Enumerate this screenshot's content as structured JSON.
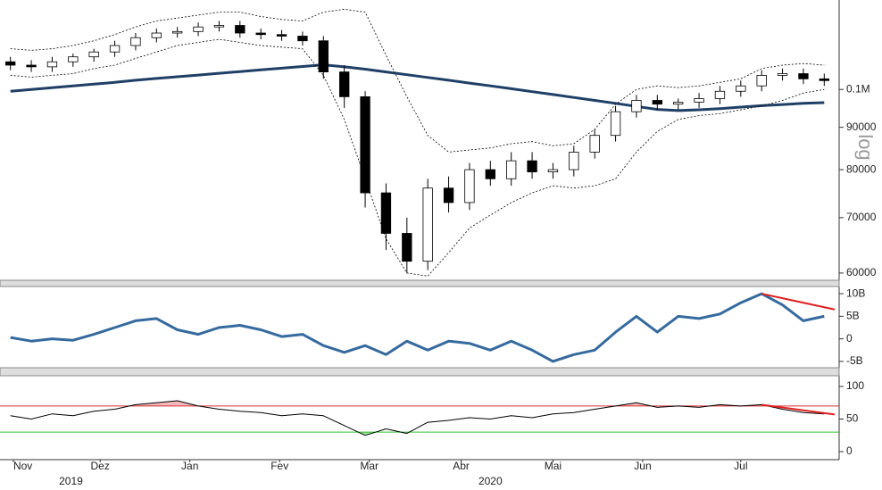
{
  "chart_data": [
    {
      "type": "candlestick",
      "log_scale": true,
      "scale_label": "log",
      "xlim": [
        -0.5,
        39.5
      ],
      "ylim": [
        59100,
        127000
      ],
      "yticks": [
        {
          "value": 100000,
          "label": "0.1M"
        },
        90000,
        80000,
        70000,
        60000
      ],
      "candle_colors": {
        "up": "#ffffff",
        "down": "#000000",
        "edge": "#000000"
      },
      "open": [
        108000,
        107000,
        106500,
        108000,
        109500,
        111000,
        113000,
        115500,
        117000,
        117500,
        119000,
        119500,
        117000,
        116500,
        116000,
        114500,
        105000,
        98000,
        75000,
        67000,
        62000,
        76000,
        73000,
        80000,
        78000,
        82000,
        79500,
        80000,
        84000,
        88000,
        94000,
        97000,
        96000,
        96500,
        97500,
        99500,
        101000,
        104000,
        104500,
        103000
      ],
      "high": [
        109500,
        108500,
        109500,
        110500,
        112000,
        114500,
        117000,
        118500,
        119000,
        120500,
        121000,
        121000,
        118500,
        118000,
        117500,
        116000,
        107000,
        99500,
        77000,
        70000,
        78000,
        78500,
        81500,
        82000,
        84000,
        84000,
        81500,
        85500,
        89500,
        95500,
        98500,
        98500,
        97500,
        99000,
        101000,
        102500,
        105500,
        106000,
        106000,
        104500
      ],
      "low": [
        105500,
        105000,
        105000,
        106500,
        108000,
        109500,
        111500,
        114000,
        115500,
        116000,
        117500,
        115500,
        115000,
        114500,
        113000,
        103000,
        95000,
        72000,
        64000,
        60000,
        60500,
        71000,
        71500,
        76500,
        76500,
        78000,
        78000,
        78500,
        82500,
        86500,
        92500,
        94500,
        94500,
        95000,
        96000,
        98000,
        99500,
        102500,
        101500,
        101000
      ],
      "close": [
        107000,
        106500,
        108000,
        109500,
        111000,
        113000,
        115500,
        117000,
        117500,
        119000,
        119500,
        117000,
        116500,
        116000,
        114500,
        105000,
        98000,
        75000,
        67000,
        62000,
        76000,
        73000,
        80000,
        78000,
        82000,
        79500,
        80000,
        84000,
        88000,
        94000,
        97000,
        96000,
        96500,
        97500,
        99500,
        101000,
        104000,
        104500,
        103000,
        102500
      ],
      "series": [
        {
          "color": "#1f3f66",
          "width": 3,
          "dash": false,
          "values": [
            99500,
            100000,
            100500,
            101000,
            101500,
            102000,
            102600,
            103100,
            103600,
            104100,
            104600,
            105100,
            105600,
            106100,
            106600,
            107100,
            106500,
            105800,
            105000,
            104200,
            103400,
            102600,
            101800,
            101000,
            100200,
            99400,
            98600,
            97800,
            97000,
            96200,
            95400,
            94600,
            94300,
            94500,
            94800,
            95200,
            95600,
            95900,
            96200,
            96400
          ]
        },
        {
          "color": "#000000",
          "width": 0.8,
          "dash": true,
          "values": [
            112000,
            111500,
            112000,
            113000,
            114500,
            116500,
            119000,
            121000,
            122000,
            123000,
            124000,
            124000,
            122500,
            121500,
            121000,
            124000,
            125000,
            124000,
            110000,
            98000,
            88000,
            84000,
            84500,
            85000,
            86000,
            86500,
            85500,
            86000,
            89500,
            96000,
            100000,
            101000,
            100500,
            101000,
            102000,
            103000,
            106000,
            107000,
            107500,
            107000
          ]
        },
        {
          "color": "#000000",
          "width": 0.8,
          "dash": true,
          "values": [
            104000,
            103500,
            104000,
            104500,
            106000,
            107000,
            109000,
            111000,
            113000,
            114000,
            115000,
            114000,
            113000,
            112500,
            112000,
            104000,
            92000,
            78000,
            66000,
            60000,
            59500,
            63500,
            68000,
            70500,
            73000,
            75000,
            76500,
            76000,
            76500,
            78000,
            84000,
            89000,
            92000,
            93000,
            93500,
            94500,
            95500,
            97000,
            99000,
            100000
          ]
        }
      ]
    },
    {
      "type": "line",
      "xlim": [
        -0.5,
        39.5
      ],
      "ylim": [
        -6400000000,
        11400000000
      ],
      "yticks": [
        {
          "value": 10000000000,
          "label": "10B"
        },
        {
          "value": 5000000000,
          "label": "5B"
        },
        0,
        {
          "value": -5000000000,
          "label": "-5B"
        }
      ],
      "series": [
        {
          "color": "#356a9e",
          "width": 3,
          "values": [
            300000000,
            -500000000,
            0,
            -300000000,
            1000000000,
            2500000000,
            4000000000,
            4500000000,
            2000000000,
            1000000000,
            2500000000,
            3000000000,
            2000000000,
            500000000,
            1000000000,
            -1500000000,
            -3000000000,
            -1500000000,
            -3500000000,
            -500000000,
            -2500000000,
            -500000000,
            -1000000000,
            -2500000000,
            -500000000,
            -2500000000,
            -5000000000,
            -3500000000,
            -2500000000,
            1500000000,
            5000000000,
            1500000000,
            5000000000,
            4500000000,
            5500000000,
            8000000000,
            10000000000,
            7500000000,
            4000000000,
            5000000000
          ]
        }
      ],
      "trendline": {
        "color": "#e02020",
        "x": [
          36,
          39.5
        ],
        "values": [
          10000000000,
          6500000000
        ]
      }
    },
    {
      "type": "line",
      "xlim": [
        -0.5,
        39.5
      ],
      "ylim": [
        -8.2,
        112.3
      ],
      "yticks": [
        100,
        50,
        0
      ],
      "hlines": [
        {
          "value": 70,
          "color": "#d03030",
          "fill": "#f4b8bd",
          "side": "above"
        },
        {
          "value": 30,
          "color": "#2fc02f",
          "fill": "#9fe39f",
          "side": "below"
        }
      ],
      "series": [
        {
          "color": "#000000",
          "width": 1,
          "values": [
            55,
            50,
            58,
            55,
            62,
            65,
            72,
            75,
            78,
            70,
            65,
            62,
            60,
            55,
            58,
            55,
            40,
            25,
            35,
            28,
            45,
            48,
            52,
            50,
            55,
            52,
            58,
            60,
            65,
            70,
            75,
            68,
            70,
            68,
            72,
            70,
            72,
            65,
            60,
            58
          ]
        }
      ],
      "trendline": {
        "color": "#e02020",
        "x": [
          36,
          39.5
        ],
        "values": [
          72,
          57
        ]
      },
      "xticks": [
        {
          "value": 0.14,
          "label": "Nov"
        },
        {
          "value": 4.3,
          "label": "Dez"
        },
        {
          "value": 8.6,
          "label": "Jan"
        },
        {
          "value": 12.9,
          "label": "Fev"
        },
        {
          "value": 17.2,
          "label": "Mar"
        },
        {
          "value": 21.6,
          "label": "Abr"
        },
        {
          "value": 26,
          "label": "Mai"
        },
        {
          "value": 30.3,
          "label": "Jun"
        },
        {
          "value": 35,
          "label": "Jul"
        }
      ],
      "year_ticks": [
        {
          "value": 2.9,
          "label": "2019"
        },
        {
          "value": 23,
          "label": "2020"
        }
      ]
    }
  ]
}
